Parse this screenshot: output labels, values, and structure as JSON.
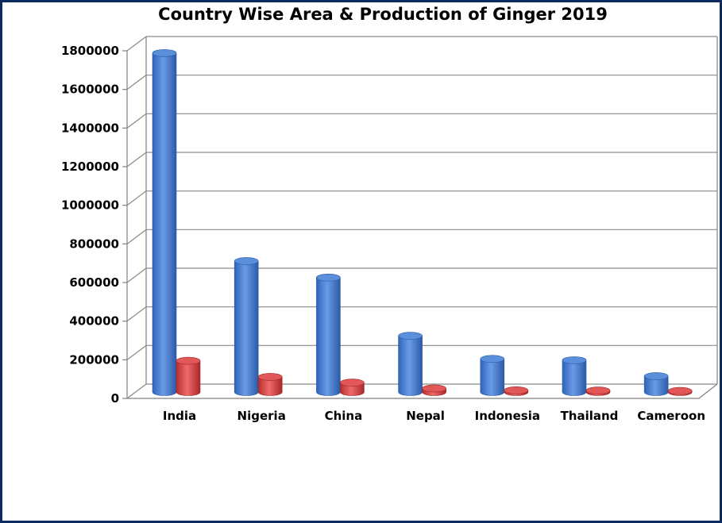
{
  "chart_data": {
    "type": "bar",
    "title": "Country Wise Area & Production of Ginger 2019",
    "categories": [
      "India",
      "Nigeria",
      "China",
      "Nepal",
      "Indonesia",
      "Thailand",
      "Cameroon"
    ],
    "series": [
      {
        "values": [
          1788000,
          691000,
          604000,
          297000,
          175000,
          168000,
          84000
        ],
        "color": "#4f86d6"
      },
      {
        "values": [
          165000,
          80000,
          50000,
          19000,
          9000,
          8000,
          6000
        ],
        "color": "#d94a4a"
      }
    ],
    "ylim": [
      0,
      1800000
    ],
    "yticks": [
      0,
      200000,
      400000,
      600000,
      800000,
      1000000,
      1200000,
      1400000,
      1600000,
      1800000
    ],
    "ytick_labels": [
      "0",
      "200000",
      "400000",
      "600000",
      "800000",
      "1000000",
      "1200000",
      "1400000",
      "1600000",
      "1800000"
    ],
    "grid": true,
    "legend": false,
    "style": "3d-cylinder"
  }
}
